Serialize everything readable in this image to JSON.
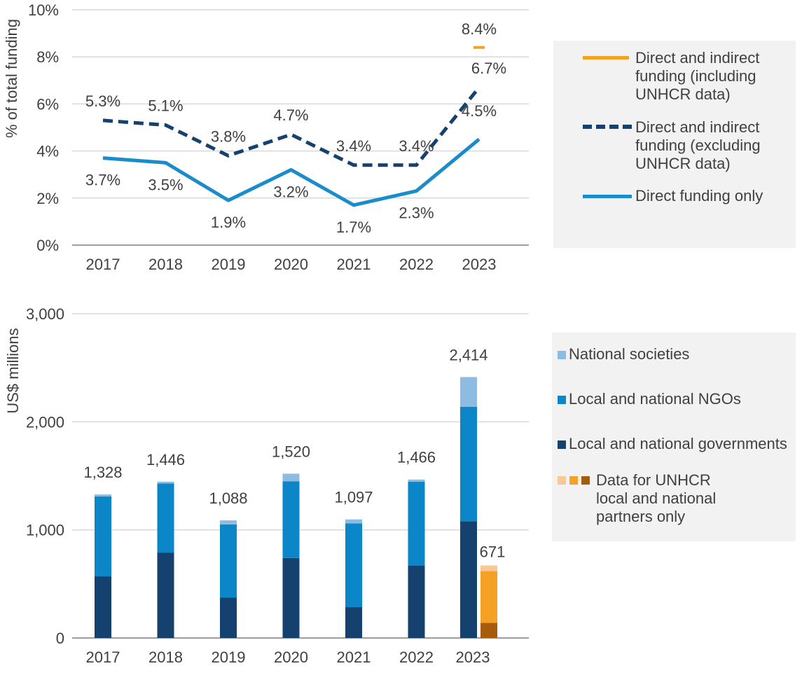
{
  "chart_data": [
    {
      "type": "line",
      "ylabel": "% of total funding",
      "ylim": [
        0,
        10
      ],
      "yticks": [
        "0%",
        "2%",
        "4%",
        "6%",
        "8%",
        "10%"
      ],
      "categories": [
        "2017",
        "2018",
        "2019",
        "2020",
        "2021",
        "2022",
        "2023"
      ],
      "grid": true,
      "legend_position": "right",
      "series": [
        {
          "name": "Direct and indirect funding (including UNHCR data)",
          "color": "#f4a125",
          "style": "short-dash",
          "values": [
            null,
            null,
            null,
            null,
            null,
            null,
            8.4
          ],
          "labels": [
            "",
            "",
            "",
            "",
            "",
            "",
            "8.4%"
          ]
        },
        {
          "name": "Direct and indirect funding (excluding UNHCR data)",
          "color": "#14416e",
          "style": "dashed",
          "values": [
            5.3,
            5.1,
            3.8,
            4.7,
            3.4,
            3.4,
            6.7
          ],
          "labels": [
            "5.3%",
            "5.1%",
            "3.8%",
            "4.7%",
            "3.4%",
            "3.4%",
            "6.7%"
          ]
        },
        {
          "name": "Direct funding only",
          "color": "#1a8ccc",
          "style": "solid",
          "values": [
            3.7,
            3.5,
            1.9,
            3.2,
            1.7,
            2.3,
            4.5
          ],
          "labels": [
            "3.7%",
            "3.5%",
            "1.9%",
            "3.2%",
            "1.7%",
            "2.3%",
            "4.5%"
          ]
        }
      ]
    },
    {
      "type": "bar",
      "stacked": true,
      "ylabel": "US$ millions",
      "ylim": [
        0,
        3000
      ],
      "yticks": [
        "0",
        "1,000",
        "2,000",
        "3,000"
      ],
      "categories": [
        "2017",
        "2018",
        "2019",
        "2020",
        "2021",
        "2022",
        "2023"
      ],
      "grid": true,
      "legend_position": "right",
      "series": [
        {
          "name": "Local and national governments",
          "color": "#14416e",
          "values": [
            570,
            790,
            375,
            740,
            285,
            670,
            1080
          ]
        },
        {
          "name": "Local and national NGOs",
          "color": "#0b86c8",
          "values": [
            740,
            640,
            675,
            710,
            775,
            775,
            1060
          ]
        },
        {
          "name": "National societies",
          "color": "#8dbce3",
          "values": [
            18,
            16,
            38,
            70,
            37,
            21,
            274
          ]
        }
      ],
      "totals": [
        "1,328",
        "1,446",
        "1,088",
        "1,520",
        "1,097",
        "1,466",
        "2,414"
      ],
      "unhcr": {
        "name": "Data for UNHCR local and national partners only",
        "category": "2023",
        "total_label": "671",
        "colors": [
          "#f9c995",
          "#f4a125",
          "#a75c0c"
        ],
        "segments": [
          {
            "color": "#a75c0c",
            "value": 140
          },
          {
            "color": "#f4a125",
            "value": 480
          },
          {
            "color": "#f9c995",
            "value": 51
          }
        ]
      }
    }
  ]
}
